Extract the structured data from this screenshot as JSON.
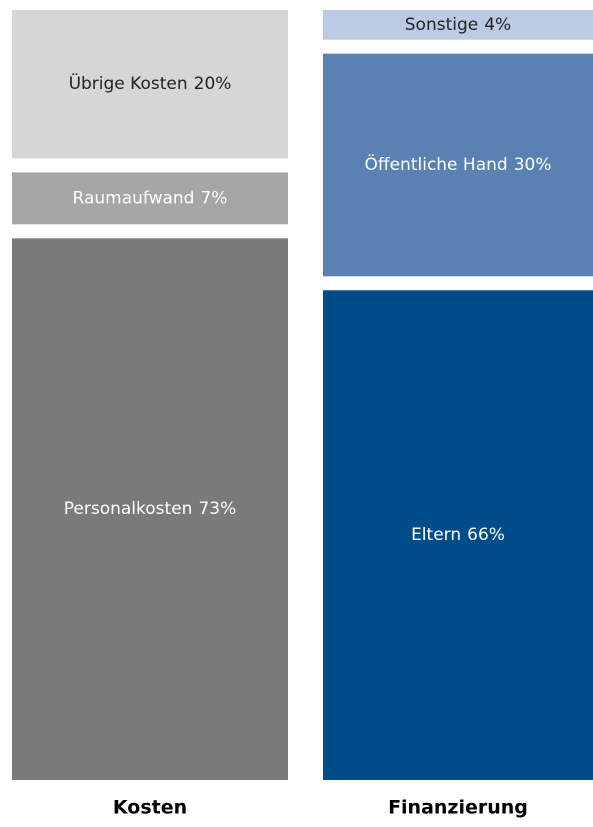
{
  "chart_data": {
    "type": "stacked_bar",
    "categories": [
      "Kosten",
      "Finanzierung"
    ],
    "ylim": [
      0,
      100
    ],
    "series": [
      {
        "name": "Personalkosten",
        "color": "#7a7a7a",
        "values": [
          73,
          null
        ],
        "value_labels": [
          "73%",
          null
        ]
      },
      {
        "name": "Raumaufwand",
        "color": "#a6a6a6",
        "values": [
          7,
          null
        ],
        "value_labels": [
          "7%",
          null
        ]
      },
      {
        "name": "Übrige Kosten",
        "color": "#d6d6d6",
        "values": [
          20,
          null
        ],
        "value_labels": [
          "20%",
          null
        ]
      },
      {
        "name": "Eltern",
        "color": "#004c88",
        "values": [
          null,
          66
        ],
        "value_labels": [
          null,
          "66%"
        ]
      },
      {
        "name": "Öffentliche Hand",
        "color": "#5b80b2",
        "values": [
          null,
          30
        ],
        "value_labels": [
          null,
          "30%"
        ]
      },
      {
        "name": "Sonstige",
        "color": "#bccae4",
        "values": [
          null,
          4
        ],
        "value_labels": [
          null,
          "4%"
        ]
      }
    ]
  }
}
